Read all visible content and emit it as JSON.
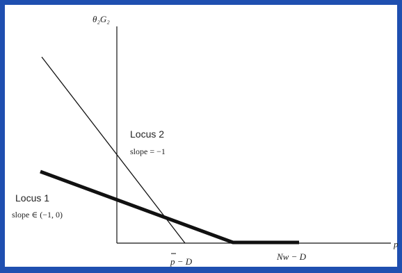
{
  "diagram": {
    "y_axis_label": "θ₂G₂",
    "x_axis_label": "p",
    "locus1": {
      "name": "Locus 1",
      "slope_text": "slope ∈ (−1, 0)"
    },
    "locus2": {
      "name": "Locus 2",
      "slope_text": "slope = −1"
    },
    "x_ticks": {
      "p_bar_minus_d": "p − D",
      "nw_minus_d": "Nw − D"
    },
    "colors": {
      "frame": "#1f4fb0",
      "lines": "#111111"
    }
  }
}
